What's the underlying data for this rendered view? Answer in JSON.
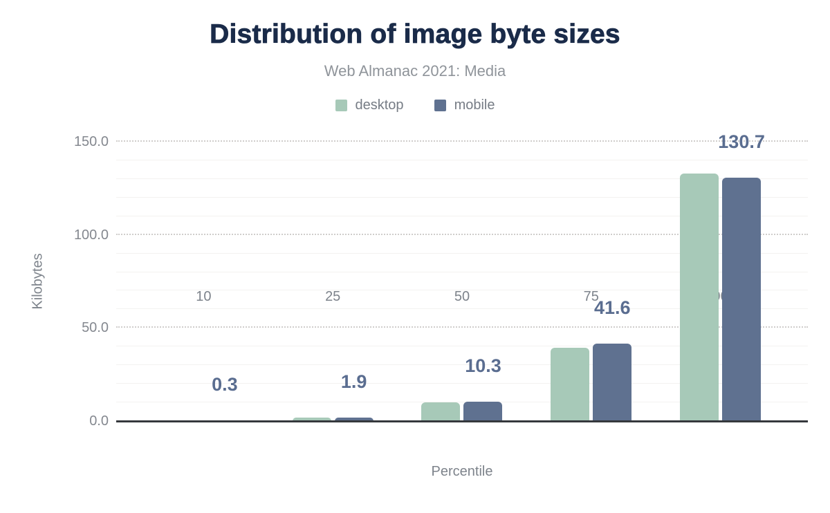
{
  "figure": {
    "title": "Distribution of image byte sizes",
    "subtitle": "Web Almanac 2021: Media"
  },
  "legend": [
    {
      "label": "desktop",
      "color": "#a7c9b8"
    },
    {
      "label": "mobile",
      "color": "#5f7190"
    }
  ],
  "chart_data": {
    "type": "bar",
    "title": "Distribution of image byte sizes",
    "subtitle": "Web Almanac 2021: Media",
    "xlabel": "Percentile",
    "ylabel": "Kilobytes",
    "categories": [
      "10",
      "25",
      "50",
      "75",
      "90"
    ],
    "series": [
      {
        "name": "desktop",
        "color": "#a7c9b8",
        "values": [
          0.3,
          1.8,
          10.0,
          39.2,
          132.8
        ]
      },
      {
        "name": "mobile",
        "color": "#5f7190",
        "values": [
          0.3,
          1.9,
          10.3,
          41.6,
          130.7
        ]
      }
    ],
    "bar_labels": {
      "series": "mobile",
      "texts": [
        "0.3",
        "1.9",
        "10.3",
        "41.6",
        "130.7"
      ],
      "color": "#5a6d90"
    },
    "ylim": [
      0,
      150
    ],
    "yticks": [
      {
        "value": 0,
        "label": "0.0"
      },
      {
        "value": 50,
        "label": "50.0"
      },
      {
        "value": 100,
        "label": "100.0"
      },
      {
        "value": 150,
        "label": "150.0"
      }
    ],
    "minor_grid_step": 10,
    "major_grid_step": 50,
    "grid": "minor solid, major dotted, dark zero baseline",
    "legend_position": "top"
  },
  "colors": {
    "title": "#1a2b49",
    "subtitle": "#8f949a",
    "axis_text": "#7d838b",
    "baseline": "#35383c",
    "grid_minor": "#f3f2f0",
    "grid_major": "#cfcdcb"
  }
}
